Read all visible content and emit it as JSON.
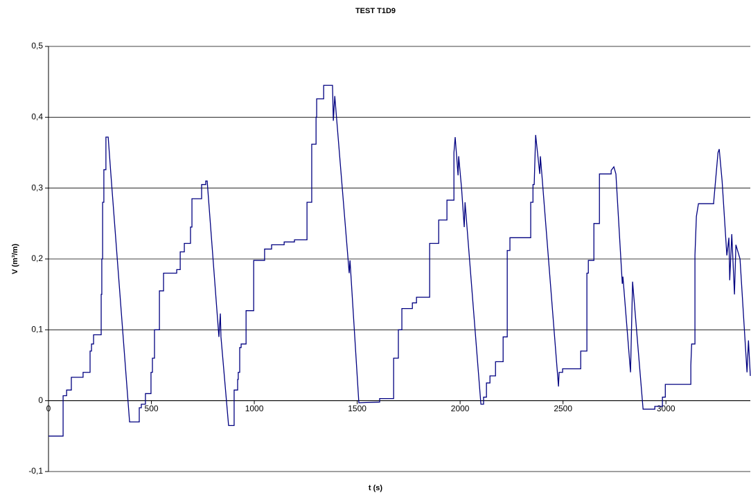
{
  "chart_data": {
    "type": "line",
    "title": "TEST T1D9",
    "xlabel": "t (s)",
    "ylabel": "V (m³/m)",
    "color": "#000080",
    "grid": true,
    "xlim": [
      0,
      3410
    ],
    "xticks": [
      0,
      500,
      1000,
      1500,
      2000,
      2500,
      3000
    ],
    "ylim": [
      -0.1,
      0.5
    ],
    "yticks": [
      {
        "value": -0.1,
        "label": "-0,1"
      },
      0,
      {
        "value": 0.1,
        "label": "0,1"
      },
      {
        "value": 0.2,
        "label": "0,2"
      },
      {
        "value": 0.3,
        "label": "0,3"
      },
      {
        "value": 0.4,
        "label": "0,4"
      },
      {
        "value": 0.5,
        "label": "0,5"
      }
    ],
    "x": [
      0,
      71,
      71,
      88,
      88,
      111,
      111,
      168,
      168,
      202,
      202,
      209,
      209,
      219,
      219,
      256,
      256,
      259,
      259,
      263,
      263,
      269,
      269,
      279,
      279,
      290,
      303,
      394,
      441,
      441,
      451,
      451,
      471,
      471,
      498,
      498,
      505,
      505,
      515,
      515,
      539,
      539,
      559,
      559,
      623,
      623,
      640,
      640,
      660,
      660,
      690,
      690,
      697,
      697,
      744,
      744,
      764,
      764,
      771,
      828,
      835,
      838,
      875,
      902,
      902,
      919,
      919,
      922,
      922,
      929,
      929,
      936,
      936,
      960,
      960,
      997,
      997,
      1050,
      1050,
      1084,
      1084,
      1145,
      1145,
      1195,
      1195,
      1256,
      1256,
      1279,
      1279,
      1300,
      1300,
      1303,
      1303,
      1337,
      1337,
      1380,
      1384,
      1391,
      1461,
      1465,
      1508,
      1609,
      1609,
      1677,
      1677,
      1700,
      1700,
      1717,
      1717,
      1768,
      1768,
      1788,
      1788,
      1852,
      1852,
      1896,
      1896,
      1936,
      1936,
      1970,
      1970,
      1976,
      1990,
      1993,
      2007,
      2020,
      2024,
      2101,
      2114,
      2114,
      2128,
      2128,
      2145,
      2145,
      2172,
      2172,
      2209,
      2209,
      2229,
      2229,
      2242,
      2242,
      2343,
      2343,
      2354,
      2354,
      2360,
      2367,
      2387,
      2390,
      2397,
      2478,
      2481,
      2498,
      2498,
      2586,
      2586,
      2616,
      2616,
      2623,
      2623,
      2650,
      2650,
      2677,
      2677,
      2734,
      2734,
      2747,
      2757,
      2788,
      2791,
      2828,
      2838,
      2889,
      2946,
      2946,
      2983,
      2983,
      2997,
      2997,
      3121,
      3121,
      3125,
      3141,
      3141,
      3148,
      3158,
      3232,
      3232,
      3253,
      3259,
      3273,
      3296,
      3306,
      3310,
      3320,
      3333,
      3340,
      3360,
      3394,
      3401,
      3410
    ],
    "values": [
      -0.05,
      -0.05,
      0.007,
      0.007,
      0.015,
      0.015,
      0.033,
      0.033,
      0.04,
      0.04,
      0.07,
      0.07,
      0.08,
      0.08,
      0.093,
      0.093,
      0.15,
      0.15,
      0.2,
      0.2,
      0.28,
      0.28,
      0.326,
      0.326,
      0.372,
      0.372,
      0.32,
      -0.03,
      -0.03,
      -0.01,
      -0.01,
      -0.005,
      -0.005,
      0.01,
      0.01,
      0.04,
      0.04,
      0.06,
      0.06,
      0.1,
      0.1,
      0.155,
      0.155,
      0.18,
      0.18,
      0.185,
      0.185,
      0.21,
      0.21,
      0.222,
      0.222,
      0.245,
      0.245,
      0.285,
      0.285,
      0.305,
      0.305,
      0.31,
      0.31,
      0.09,
      0.123,
      0.09,
      -0.035,
      -0.035,
      0.015,
      0.015,
      0.03,
      0.03,
      0.04,
      0.04,
      0.075,
      0.075,
      0.08,
      0.08,
      0.127,
      0.127,
      0.198,
      0.198,
      0.214,
      0.214,
      0.22,
      0.22,
      0.224,
      0.224,
      0.227,
      0.227,
      0.28,
      0.28,
      0.362,
      0.362,
      0.4,
      0.4,
      0.426,
      0.426,
      0.445,
      0.445,
      0.395,
      0.43,
      0.18,
      0.198,
      -0.003,
      -0.002,
      0.003,
      0.003,
      0.06,
      0.06,
      0.1,
      0.1,
      0.13,
      0.13,
      0.138,
      0.138,
      0.146,
      0.146,
      0.222,
      0.222,
      0.255,
      0.255,
      0.283,
      0.283,
      0.35,
      0.372,
      0.318,
      0.345,
      0.3,
      0.245,
      0.28,
      -0.005,
      -0.005,
      0.005,
      0.005,
      0.025,
      0.025,
      0.035,
      0.035,
      0.055,
      0.055,
      0.09,
      0.09,
      0.212,
      0.212,
      0.23,
      0.23,
      0.28,
      0.28,
      0.305,
      0.305,
      0.375,
      0.32,
      0.345,
      0.32,
      0.02,
      0.04,
      0.04,
      0.045,
      0.045,
      0.07,
      0.07,
      0.18,
      0.18,
      0.198,
      0.198,
      0.25,
      0.25,
      0.32,
      0.32,
      0.325,
      0.33,
      0.32,
      0.165,
      0.175,
      0.04,
      0.168,
      -0.012,
      -0.012,
      -0.008,
      -0.008,
      0.005,
      0.005,
      0.023,
      0.023,
      0.05,
      0.08,
      0.08,
      0.205,
      0.26,
      0.278,
      0.278,
      0.28,
      0.35,
      0.355,
      0.31,
      0.205,
      0.23,
      0.17,
      0.235,
      0.15,
      0.22,
      0.2,
      0.04,
      0.085,
      0.035
    ]
  }
}
